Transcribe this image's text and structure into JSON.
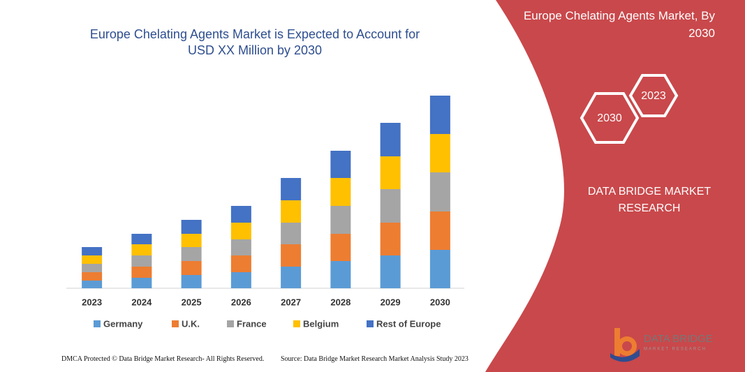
{
  "chart_data": {
    "type": "bar",
    "stacked": true,
    "title": "Europe Chelating Agents Market is Expected to Account for USD XX Million by 2030",
    "categories": [
      "2023",
      "2024",
      "2025",
      "2026",
      "2027",
      "2028",
      "2029",
      "2030"
    ],
    "series": [
      {
        "name": "Germany",
        "color": "#5b9bd5",
        "values": [
          11,
          15,
          19,
          23,
          31,
          39,
          47,
          55
        ]
      },
      {
        "name": "U.K.",
        "color": "#ed7d31",
        "values": [
          12,
          16,
          20,
          24,
          32,
          39,
          47,
          55
        ]
      },
      {
        "name": "France",
        "color": "#a5a5a5",
        "values": [
          12,
          16,
          20,
          23,
          31,
          40,
          48,
          56
        ]
      },
      {
        "name": "Belgium",
        "color": "#ffc000",
        "values": [
          12,
          16,
          19,
          24,
          32,
          40,
          47,
          55
        ]
      },
      {
        "name": "Rest of Europe",
        "color": "#4472c4",
        "values": [
          12,
          15,
          20,
          24,
          32,
          39,
          48,
          55
        ]
      }
    ],
    "legend": "bottom"
  },
  "panel": {
    "heading": "Europe Chelating Agents Market, By 2030",
    "hexagons": [
      "2023",
      "2030"
    ],
    "brand": "DATA BRIDGE MARKET RESEARCH"
  },
  "logo": {
    "name": "DATA BRIDGE",
    "tagline": "MARKET RESEARCH"
  },
  "footer": {
    "left": "DMCA Protected © Data Bridge Market Research- All Rights Reserved.",
    "right": "Source: Data Bridge Market Research Market Analysis Study 2023"
  }
}
